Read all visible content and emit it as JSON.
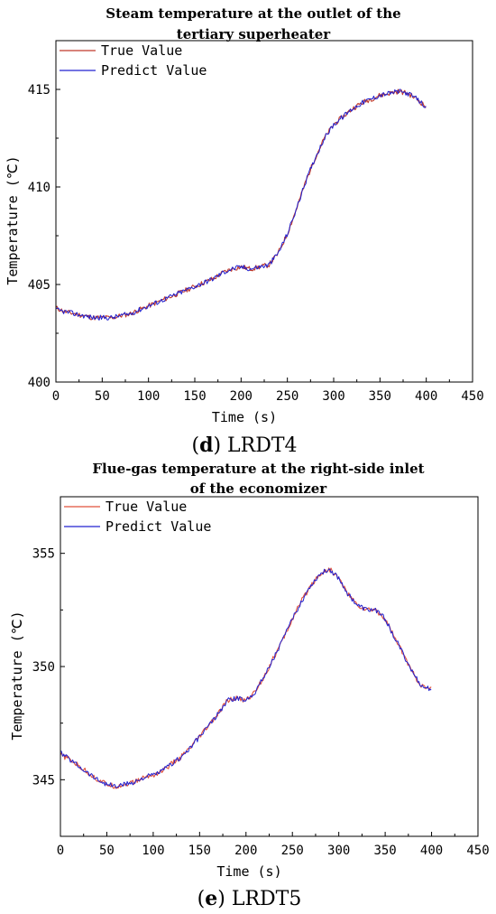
{
  "chart_data": [
    {
      "type": "line",
      "title_line1": "Steam temperature at the outlet of the",
      "title_line2": "tertiary superheater",
      "xlabel": "Time (s)",
      "ylabel": "Temperature (℃)",
      "xlim": [
        0,
        450
      ],
      "ylim": [
        400,
        417.5
      ],
      "xticks": [
        0,
        50,
        100,
        150,
        200,
        250,
        300,
        350,
        400,
        450
      ],
      "yticks": [
        400,
        405,
        410,
        415
      ],
      "legend_position": "top-left",
      "caption_letter": "d",
      "caption_text": "LRDT4",
      "series": [
        {
          "name": "True Value",
          "color": "#c0392b",
          "x": [
            0,
            10,
            20,
            30,
            40,
            50,
            60,
            70,
            80,
            90,
            100,
            110,
            120,
            130,
            140,
            150,
            160,
            170,
            180,
            190,
            200,
            210,
            220,
            230,
            240,
            250,
            260,
            270,
            280,
            290,
            300,
            310,
            320,
            330,
            340,
            350,
            360,
            370,
            380,
            390,
            400
          ],
          "y": [
            403.8,
            403.6,
            403.5,
            403.4,
            403.3,
            403.3,
            403.3,
            403.4,
            403.5,
            403.7,
            403.9,
            404.1,
            404.3,
            404.5,
            404.7,
            404.9,
            405.1,
            405.3,
            405.6,
            405.8,
            405.9,
            405.8,
            405.9,
            406.0,
            406.6,
            407.6,
            408.9,
            410.3,
            411.5,
            412.5,
            413.2,
            413.6,
            414.0,
            414.3,
            414.5,
            414.7,
            414.8,
            414.9,
            414.8,
            414.5,
            414.1
          ]
        },
        {
          "name": "Predict Value",
          "color": "#2020d0",
          "x": [
            0,
            10,
            20,
            30,
            40,
            50,
            60,
            70,
            80,
            90,
            100,
            110,
            120,
            130,
            140,
            150,
            160,
            170,
            180,
            190,
            200,
            210,
            220,
            230,
            240,
            250,
            260,
            270,
            280,
            290,
            300,
            310,
            320,
            330,
            340,
            350,
            360,
            370,
            380,
            390,
            400
          ],
          "y": [
            403.7,
            403.6,
            403.5,
            403.4,
            403.3,
            403.3,
            403.3,
            403.4,
            403.5,
            403.7,
            403.9,
            404.1,
            404.3,
            404.5,
            404.7,
            404.9,
            405.1,
            405.3,
            405.6,
            405.8,
            405.9,
            405.8,
            405.9,
            406.0,
            406.6,
            407.6,
            408.9,
            410.3,
            411.5,
            412.5,
            413.2,
            413.6,
            414.0,
            414.3,
            414.5,
            414.7,
            414.8,
            414.9,
            414.8,
            414.5,
            414.1
          ]
        }
      ]
    },
    {
      "type": "line",
      "title_line1": "Flue-gas temperature at the right-side inlet",
      "title_line2": "of the economizer",
      "xlabel": "Time (s)",
      "ylabel": "Temperature (℃)",
      "xlim": [
        0,
        450
      ],
      "ylim": [
        342.5,
        357.5
      ],
      "xticks": [
        0,
        50,
        100,
        150,
        200,
        250,
        300,
        350,
        400,
        450
      ],
      "yticks": [
        345,
        350,
        355
      ],
      "legend_position": "top-left",
      "caption_letter": "e",
      "caption_text": "LRDT5",
      "series": [
        {
          "name": "True Value",
          "color": "#e0503a",
          "x": [
            0,
            10,
            20,
            30,
            40,
            50,
            60,
            70,
            80,
            90,
            100,
            110,
            120,
            130,
            140,
            150,
            160,
            170,
            180,
            190,
            200,
            210,
            220,
            230,
            240,
            250,
            260,
            270,
            280,
            290,
            300,
            310,
            320,
            330,
            340,
            350,
            360,
            370,
            380,
            390,
            400
          ],
          "y": [
            346.1,
            345.9,
            345.6,
            345.3,
            345.0,
            344.8,
            344.7,
            344.8,
            344.9,
            345.1,
            345.2,
            345.4,
            345.7,
            346.0,
            346.4,
            346.9,
            347.4,
            347.9,
            348.5,
            348.6,
            348.5,
            348.9,
            349.6,
            350.4,
            351.2,
            352.1,
            352.9,
            353.6,
            354.1,
            354.3,
            353.9,
            353.2,
            352.7,
            352.5,
            352.5,
            352.1,
            351.3,
            350.5,
            349.7,
            349.1,
            349.0
          ]
        },
        {
          "name": "Predict Value",
          "color": "#2020d0",
          "x": [
            0,
            10,
            20,
            30,
            40,
            50,
            60,
            70,
            80,
            90,
            100,
            110,
            120,
            130,
            140,
            150,
            160,
            170,
            180,
            190,
            200,
            210,
            220,
            230,
            240,
            250,
            260,
            270,
            280,
            290,
            300,
            310,
            320,
            330,
            340,
            350,
            360,
            370,
            380,
            390,
            400
          ],
          "y": [
            346.2,
            345.9,
            345.6,
            345.3,
            345.0,
            344.8,
            344.7,
            344.8,
            344.9,
            345.1,
            345.2,
            345.4,
            345.7,
            346.0,
            346.4,
            346.9,
            347.4,
            347.9,
            348.5,
            348.6,
            348.5,
            348.9,
            349.6,
            350.4,
            351.2,
            352.1,
            352.9,
            353.6,
            354.1,
            354.3,
            353.9,
            353.2,
            352.7,
            352.5,
            352.5,
            352.1,
            351.3,
            350.5,
            349.7,
            349.1,
            349.0
          ]
        }
      ]
    }
  ]
}
